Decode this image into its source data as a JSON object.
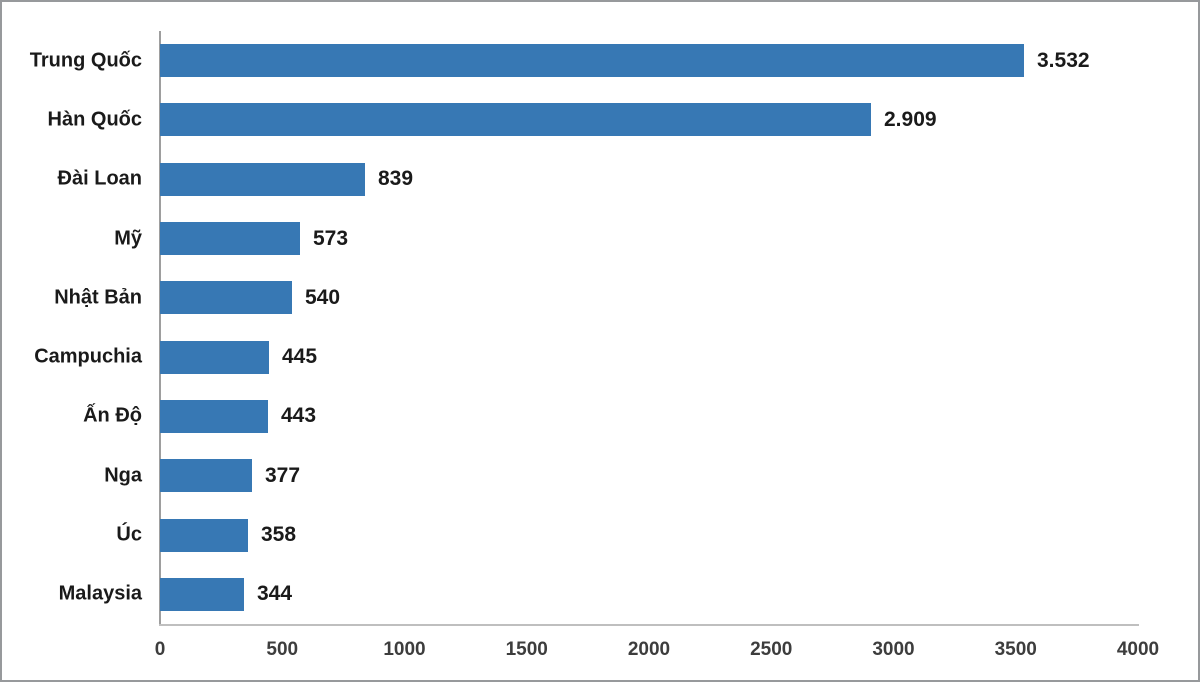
{
  "chart_data": {
    "type": "bar",
    "orientation": "horizontal",
    "title": "",
    "xlabel": "",
    "ylabel": "",
    "categories": [
      "Trung Quốc",
      "Hàn Quốc",
      "Đài Loan",
      "Mỹ",
      "Nhật Bản",
      "Campuchia",
      "Ấn Độ",
      "Nga",
      "Úc",
      "Malaysia"
    ],
    "values": [
      3532,
      2909,
      839,
      573,
      540,
      445,
      443,
      377,
      358,
      344
    ],
    "value_labels": [
      "3.532",
      "2.909",
      "839",
      "573",
      "540",
      "445",
      "443",
      "377",
      "358",
      "344"
    ],
    "xlim": [
      0,
      4000
    ],
    "x_ticks": [
      0,
      500,
      1000,
      1500,
      2000,
      2500,
      3000,
      3500,
      4000
    ],
    "x_tick_labels": [
      "0",
      "500",
      "1000",
      "1500",
      "2000",
      "2500",
      "3000",
      "3500",
      "4000"
    ],
    "legend": "none",
    "grid": false,
    "colors": {
      "bar": "#3778b4",
      "y_axis_line": "#9e9e9e",
      "x_axis_line": "#bfbfbf",
      "label_text": "#1a1a1a",
      "tick_text": "#3d3d3d"
    }
  }
}
